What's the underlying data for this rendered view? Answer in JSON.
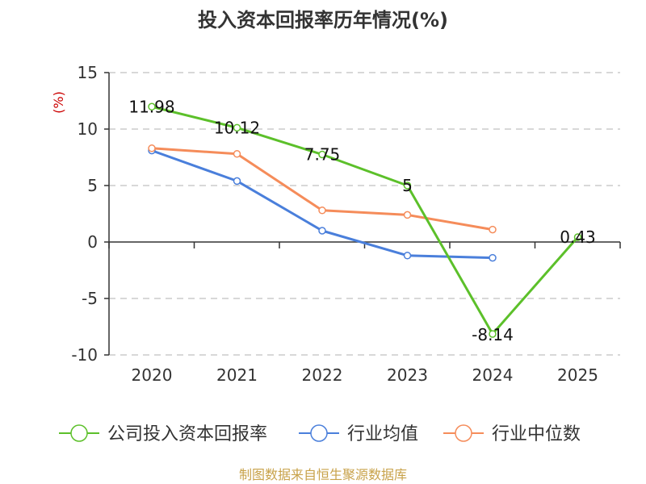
{
  "chart_data": {
    "type": "line",
    "title": "投入资本回报率历年情况(%)",
    "ylabel": "(%)",
    "xlabel": "",
    "categories": [
      "2020",
      "2021",
      "2022",
      "2023",
      "2024",
      "2025"
    ],
    "ylim": [
      -10,
      15
    ],
    "yticks": [
      15,
      10,
      5,
      0,
      -5,
      -10
    ],
    "grid": "horizontal dashed",
    "legend_position": "bottom",
    "series": [
      {
        "name": "公司投入资本回报率",
        "color": "#5cc02a",
        "values": [
          11.98,
          10.12,
          7.75,
          5,
          -8.14,
          0.43
        ],
        "labels": [
          "11.98",
          "10.12",
          "7.75",
          "5",
          "-8.14",
          "0.43"
        ]
      },
      {
        "name": "行业均值",
        "color": "#4a7fdb",
        "values": [
          8.1,
          5.4,
          1.0,
          -1.2,
          -1.4,
          null
        ]
      },
      {
        "name": "行业中位数",
        "color": "#f58c5a",
        "values": [
          8.3,
          7.8,
          2.8,
          2.4,
          1.1,
          null
        ]
      }
    ]
  },
  "source": "制图数据来自恒生聚源数据库",
  "colors": {
    "unit": "#cc0000",
    "source": "#c8a24a",
    "axis": "#333333",
    "grid": "#cccccc"
  }
}
